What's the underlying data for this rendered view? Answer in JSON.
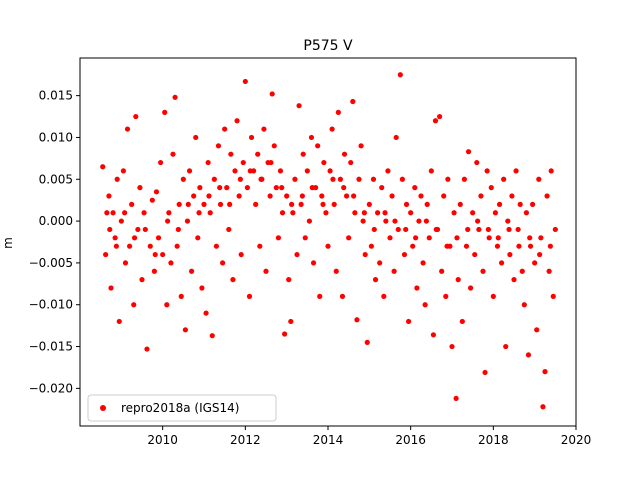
{
  "chart_data": {
    "type": "scatter",
    "title": "P575 V",
    "xlabel": "",
    "ylabel": "m",
    "xlim": [
      2008.0,
      2020.0
    ],
    "ylim": [
      -0.0245,
      0.0195
    ],
    "x_ticks": [
      2010,
      2012,
      2014,
      2016,
      2018,
      2020
    ],
    "x_tick_labels": [
      "2010",
      "2012",
      "2014",
      "2016",
      "2018",
      "2020"
    ],
    "y_ticks": [
      -0.02,
      -0.015,
      -0.01,
      -0.005,
      0.0,
      0.005,
      0.01,
      0.015
    ],
    "y_tick_labels": [
      "−0.020",
      "−0.015",
      "−0.010",
      "−0.005",
      "0.000",
      "0.005",
      "0.010",
      "0.015"
    ],
    "grid": false,
    "legend_position": "lower-left",
    "series": [
      {
        "name": "repro2018a (IGS14)",
        "color": "#ff0000",
        "marker": "circle",
        "points": [
          [
            2008.55,
            0.0065
          ],
          [
            2008.62,
            -0.004
          ],
          [
            2008.7,
            0.003
          ],
          [
            2008.75,
            -0.008
          ],
          [
            2008.8,
            0.001
          ],
          [
            2008.85,
            -0.002
          ],
          [
            2008.9,
            0.005
          ],
          [
            2008.95,
            -0.012
          ],
          [
            2009.0,
            0.0
          ],
          [
            2009.05,
            0.006
          ],
          [
            2009.1,
            -0.005
          ],
          [
            2009.15,
            0.011
          ],
          [
            2009.2,
            -0.003
          ],
          [
            2009.25,
            0.002
          ],
          [
            2009.3,
            -0.01
          ],
          [
            2009.35,
            0.0125
          ],
          [
            2009.4,
            -0.001
          ],
          [
            2009.45,
            0.004
          ],
          [
            2009.5,
            -0.007
          ],
          [
            2009.55,
            0.001
          ],
          [
            2009.62,
            -0.0153
          ],
          [
            2009.7,
            -0.003
          ],
          [
            2009.75,
            0.0025
          ],
          [
            2009.8,
            -0.006
          ],
          [
            2009.85,
            0.0035
          ],
          [
            2009.9,
            -0.002
          ],
          [
            2009.95,
            0.007
          ],
          [
            2010.0,
            -0.004
          ],
          [
            2010.05,
            0.013
          ],
          [
            2010.1,
            -0.01
          ],
          [
            2010.15,
            0.001
          ],
          [
            2010.2,
            -0.005
          ],
          [
            2010.25,
            0.008
          ],
          [
            2010.3,
            0.0148
          ],
          [
            2010.35,
            -0.003
          ],
          [
            2010.4,
            0.002
          ],
          [
            2010.45,
            -0.009
          ],
          [
            2010.5,
            0.005
          ],
          [
            2010.55,
            -0.013
          ],
          [
            2010.6,
            0.0
          ],
          [
            2010.65,
            0.006
          ],
          [
            2010.7,
            -0.006
          ],
          [
            2010.75,
            0.003
          ],
          [
            2010.8,
            0.01
          ],
          [
            2010.85,
            -0.002
          ],
          [
            2010.9,
            0.004
          ],
          [
            2010.95,
            -0.008
          ],
          [
            2011.0,
            0.002
          ],
          [
            2011.05,
            -0.011
          ],
          [
            2011.1,
            0.007
          ],
          [
            2011.15,
            0.001
          ],
          [
            2011.2,
            -0.0137
          ],
          [
            2011.25,
            0.005
          ],
          [
            2011.3,
            -0.003
          ],
          [
            2011.35,
            0.009
          ],
          [
            2011.4,
            0.002
          ],
          [
            2011.45,
            -0.005
          ],
          [
            2011.5,
            0.011
          ],
          [
            2011.55,
            0.004
          ],
          [
            2011.6,
            -0.001
          ],
          [
            2011.65,
            0.008
          ],
          [
            2011.7,
            -0.007
          ],
          [
            2011.75,
            0.006
          ],
          [
            2011.8,
            0.012
          ],
          [
            2011.85,
            0.003
          ],
          [
            2011.9,
            -0.004
          ],
          [
            2011.95,
            0.007
          ],
          [
            2012.0,
            0.0167
          ],
          [
            2012.05,
            0.004
          ],
          [
            2012.1,
            -0.009
          ],
          [
            2012.15,
            0.01
          ],
          [
            2012.2,
            0.006
          ],
          [
            2012.25,
            0.002
          ],
          [
            2012.3,
            0.008
          ],
          [
            2012.35,
            -0.003
          ],
          [
            2012.4,
            0.005
          ],
          [
            2012.45,
            0.011
          ],
          [
            2012.5,
            -0.006
          ],
          [
            2012.55,
            0.007
          ],
          [
            2012.6,
            0.003
          ],
          [
            2012.65,
            0.0152
          ],
          [
            2012.7,
            0.009
          ],
          [
            2012.75,
            0.004
          ],
          [
            2012.8,
            -0.002
          ],
          [
            2012.85,
            0.006
          ],
          [
            2012.9,
            0.001
          ],
          [
            2012.95,
            -0.0135
          ],
          [
            2013.0,
            0.003
          ],
          [
            2013.05,
            -0.007
          ],
          [
            2013.1,
            -0.012
          ],
          [
            2013.15,
            0.001
          ],
          [
            2013.2,
            0.005
          ],
          [
            2013.25,
            -0.004
          ],
          [
            2013.3,
            0.0138
          ],
          [
            2013.35,
            0.002
          ],
          [
            2013.4,
            0.008
          ],
          [
            2013.45,
            -0.002
          ],
          [
            2013.5,
            0.006
          ],
          [
            2013.55,
            0.0
          ],
          [
            2013.6,
            0.01
          ],
          [
            2013.65,
            -0.005
          ],
          [
            2013.7,
            0.004
          ],
          [
            2013.75,
            0.009
          ],
          [
            2013.8,
            -0.009
          ],
          [
            2013.85,
            0.003
          ],
          [
            2013.9,
            0.007
          ],
          [
            2013.95,
            0.001
          ],
          [
            2014.0,
            -0.003
          ],
          [
            2014.05,
            0.006
          ],
          [
            2014.1,
            0.011
          ],
          [
            2014.15,
            0.002
          ],
          [
            2014.2,
            -0.006
          ],
          [
            2014.25,
            0.013
          ],
          [
            2014.3,
            0.005
          ],
          [
            2014.35,
            -0.009
          ],
          [
            2014.4,
            0.008
          ],
          [
            2014.45,
            0.003
          ],
          [
            2014.5,
            -0.002
          ],
          [
            2014.55,
            0.007
          ],
          [
            2014.6,
            0.0143
          ],
          [
            2014.65,
            0.001
          ],
          [
            2014.7,
            -0.0118
          ],
          [
            2014.75,
            0.005
          ],
          [
            2014.8,
            0.009
          ],
          [
            2014.85,
            0.0
          ],
          [
            2014.9,
            -0.004
          ],
          [
            2014.95,
            -0.0145
          ],
          [
            2015.0,
            0.002
          ],
          [
            2015.05,
            -0.003
          ],
          [
            2015.1,
            0.005
          ],
          [
            2015.15,
            -0.007
          ],
          [
            2015.2,
            0.001
          ],
          [
            2015.25,
            -0.005
          ],
          [
            2015.3,
            0.004
          ],
          [
            2015.35,
            -0.009
          ],
          [
            2015.4,
            0.0
          ],
          [
            2015.45,
            0.006
          ],
          [
            2015.5,
            -0.002
          ],
          [
            2015.55,
            0.003
          ],
          [
            2015.6,
            -0.006
          ],
          [
            2015.65,
            0.01
          ],
          [
            2015.7,
            -0.001
          ],
          [
            2015.75,
            0.0175
          ],
          [
            2015.8,
            0.005
          ],
          [
            2015.85,
            -0.004
          ],
          [
            2015.9,
            0.002
          ],
          [
            2015.95,
            -0.012
          ],
          [
            2016.0,
            0.001
          ],
          [
            2016.05,
            -0.003
          ],
          [
            2016.1,
            0.004
          ],
          [
            2016.15,
            -0.008
          ],
          [
            2016.2,
            0.0
          ],
          [
            2016.25,
            0.003
          ],
          [
            2016.3,
            -0.005
          ],
          [
            2016.35,
            -0.01
          ],
          [
            2016.4,
            0.002
          ],
          [
            2016.45,
            -0.002
          ],
          [
            2016.5,
            0.006
          ],
          [
            2016.55,
            -0.0136
          ],
          [
            2016.6,
            0.012
          ],
          [
            2016.65,
            -0.001
          ],
          [
            2016.7,
            0.0125
          ],
          [
            2016.75,
            -0.006
          ],
          [
            2016.8,
            0.003
          ],
          [
            2016.85,
            -0.009
          ],
          [
            2016.9,
            0.005
          ],
          [
            2016.95,
            -0.003
          ],
          [
            2017.0,
            -0.015
          ],
          [
            2017.05,
            0.001
          ],
          [
            2017.1,
            -0.0212
          ],
          [
            2017.15,
            -0.007
          ],
          [
            2017.2,
            0.002
          ],
          [
            2017.25,
            -0.012
          ],
          [
            2017.3,
            0.005
          ],
          [
            2017.35,
            -0.003
          ],
          [
            2017.4,
            0.0083
          ],
          [
            2017.45,
            -0.008
          ],
          [
            2017.5,
            0.001
          ],
          [
            2017.55,
            -0.004
          ],
          [
            2017.6,
            0.007
          ],
          [
            2017.65,
            -0.001
          ],
          [
            2017.7,
            0.003
          ],
          [
            2017.75,
            -0.006
          ],
          [
            2017.8,
            -0.0181
          ],
          [
            2017.85,
            0.006
          ],
          [
            2017.9,
            -0.002
          ],
          [
            2017.95,
            0.004
          ],
          [
            2018.0,
            -0.009
          ],
          [
            2018.05,
            0.001
          ],
          [
            2018.1,
            -0.003
          ],
          [
            2018.15,
            0.002
          ],
          [
            2018.2,
            -0.005
          ],
          [
            2018.25,
            0.005
          ],
          [
            2018.3,
            -0.015
          ],
          [
            2018.35,
            0.0
          ],
          [
            2018.4,
            -0.004
          ],
          [
            2018.45,
            0.003
          ],
          [
            2018.5,
            -0.007
          ],
          [
            2018.55,
            0.006
          ],
          [
            2018.6,
            -0.001
          ],
          [
            2018.65,
            0.002
          ],
          [
            2018.7,
            -0.006
          ],
          [
            2018.75,
            -0.01
          ],
          [
            2018.8,
            0.001
          ],
          [
            2018.85,
            -0.016
          ],
          [
            2018.9,
            -0.003
          ],
          [
            2018.95,
            0.002
          ],
          [
            2019.0,
            -0.005
          ],
          [
            2019.05,
            -0.013
          ],
          [
            2019.1,
            0.005
          ],
          [
            2019.15,
            -0.002
          ],
          [
            2019.2,
            -0.0222
          ],
          [
            2019.25,
            -0.018
          ],
          [
            2019.3,
            0.003
          ],
          [
            2019.35,
            -0.006
          ],
          [
            2019.4,
            0.006
          ],
          [
            2019.45,
            -0.009
          ],
          [
            2019.5,
            -0.001
          ],
          [
            2008.65,
            0.001
          ],
          [
            2008.72,
            -0.001
          ],
          [
            2008.88,
            -0.003
          ],
          [
            2009.08,
            0.001
          ],
          [
            2009.32,
            -0.002
          ],
          [
            2009.58,
            -0.001
          ],
          [
            2009.82,
            -0.004
          ],
          [
            2010.12,
            0.0
          ],
          [
            2010.38,
            -0.001
          ],
          [
            2010.62,
            0.002
          ],
          [
            2010.88,
            0.001
          ],
          [
            2011.12,
            0.003
          ],
          [
            2011.38,
            0.004
          ],
          [
            2011.62,
            0.002
          ],
          [
            2011.88,
            0.005
          ],
          [
            2012.12,
            0.006
          ],
          [
            2012.38,
            0.005
          ],
          [
            2012.62,
            0.007
          ],
          [
            2012.88,
            0.004
          ],
          [
            2013.12,
            0.002
          ],
          [
            2013.38,
            0.003
          ],
          [
            2013.62,
            0.004
          ],
          [
            2013.88,
            0.002
          ],
          [
            2014.12,
            0.005
          ],
          [
            2014.38,
            0.004
          ],
          [
            2014.62,
            0.003
          ],
          [
            2014.88,
            0.001
          ],
          [
            2015.12,
            -0.001
          ],
          [
            2015.38,
            0.001
          ],
          [
            2015.62,
            0.0
          ],
          [
            2015.88,
            -0.001
          ],
          [
            2016.12,
            -0.002
          ],
          [
            2016.38,
            0.0
          ],
          [
            2016.62,
            -0.001
          ],
          [
            2016.88,
            -0.003
          ],
          [
            2017.12,
            -0.002
          ],
          [
            2017.38,
            -0.001
          ],
          [
            2017.62,
            0.0
          ],
          [
            2017.88,
            -0.001
          ],
          [
            2018.12,
            -0.002
          ],
          [
            2018.38,
            -0.001
          ],
          [
            2018.62,
            -0.003
          ],
          [
            2018.88,
            -0.002
          ],
          [
            2019.12,
            -0.004
          ],
          [
            2019.38,
            -0.003
          ]
        ]
      }
    ]
  }
}
